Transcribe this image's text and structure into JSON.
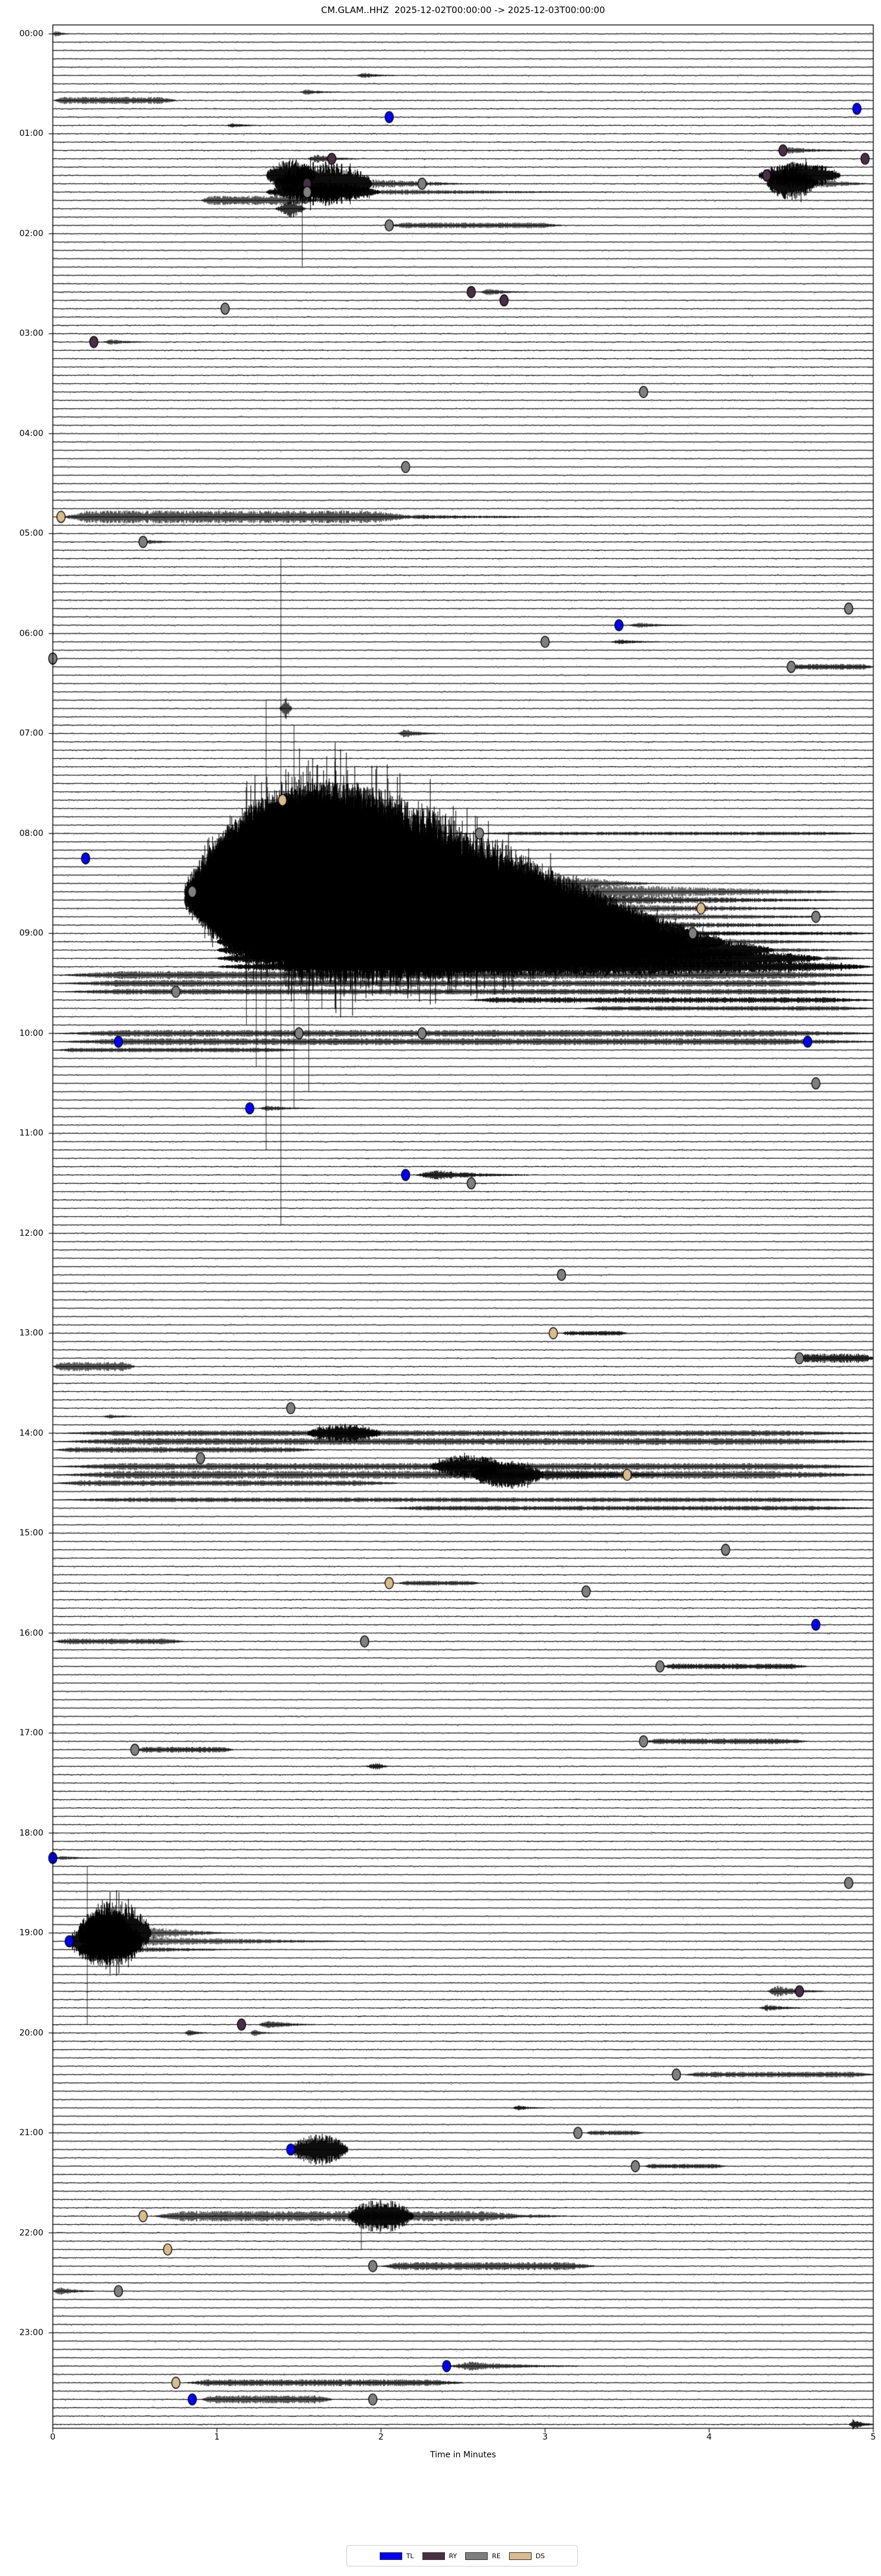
{
  "title": "CM.GLAM..HHZ  2025-12-02T00:00:00 -> 2025-12-03T00:00:00",
  "chart_data": {
    "type": "line",
    "subtype": "seismic-helicorder-dayplot",
    "station": "CM.GLAM..HHZ",
    "time_start": "2025-12-02T00:00:00",
    "time_end": "2025-12-03T00:00:00",
    "xlabel": "Time in Minutes",
    "xlim": [
      0,
      5
    ],
    "x_ticks": [
      "0",
      "1",
      "2",
      "3",
      "4",
      "5"
    ],
    "y_tick_labels": [
      "00:00",
      "01:00",
      "02:00",
      "03:00",
      "04:00",
      "05:00",
      "06:00",
      "07:00",
      "08:00",
      "09:00",
      "10:00",
      "11:00",
      "12:00",
      "13:00",
      "14:00",
      "15:00",
      "16:00",
      "17:00",
      "18:00",
      "19:00",
      "20:00",
      "21:00",
      "22:00",
      "23:00"
    ],
    "rows": 288,
    "minutes_per_row": 5,
    "grid": false,
    "trace_color": "#000000",
    "legend_position": "bottom-center",
    "legend": [
      {
        "label": "TL",
        "color": "#0000ee"
      },
      {
        "label": "RY",
        "color": "#4a2e44"
      },
      {
        "label": "RE",
        "color": "#7f7f7f"
      },
      {
        "label": "DS",
        "color": "#d9bb8d"
      }
    ],
    "markers_note": "pick markers drawn as filled ellipses on trace rows; t=row start time, m=offset minutes 0-5, c=class",
    "markers": [
      {
        "t": "00:45",
        "m": 4.9,
        "c": "TL"
      },
      {
        "t": "00:50",
        "m": 2.05,
        "c": "TL"
      },
      {
        "t": "01:10",
        "m": 4.45,
        "c": "RY"
      },
      {
        "t": "01:15",
        "m": 1.7,
        "c": "RY"
      },
      {
        "t": "01:15",
        "m": 4.95,
        "c": "RY"
      },
      {
        "t": "01:25",
        "m": 4.35,
        "c": "RY"
      },
      {
        "t": "01:30",
        "m": 1.55,
        "c": "RY"
      },
      {
        "t": "01:30",
        "m": 2.25,
        "c": "RE"
      },
      {
        "t": "01:35",
        "m": 1.55,
        "c": "RE"
      },
      {
        "t": "01:55",
        "m": 2.05,
        "c": "RE"
      },
      {
        "t": "02:35",
        "m": 2.55,
        "c": "RY"
      },
      {
        "t": "02:40",
        "m": 2.75,
        "c": "RY"
      },
      {
        "t": "02:45",
        "m": 1.05,
        "c": "RE"
      },
      {
        "t": "03:05",
        "m": 0.25,
        "c": "RY"
      },
      {
        "t": "03:35",
        "m": 3.6,
        "c": "RE"
      },
      {
        "t": "04:20",
        "m": 2.15,
        "c": "RE"
      },
      {
        "t": "04:50",
        "m": 0.05,
        "c": "DS"
      },
      {
        "t": "05:05",
        "m": 0.55,
        "c": "RE"
      },
      {
        "t": "05:45",
        "m": 4.85,
        "c": "RE"
      },
      {
        "t": "05:55",
        "m": 3.45,
        "c": "TL"
      },
      {
        "t": "06:05",
        "m": 3.0,
        "c": "RE"
      },
      {
        "t": "06:15",
        "m": 0.0,
        "c": "RE"
      },
      {
        "t": "06:20",
        "m": 4.5,
        "c": "RE"
      },
      {
        "t": "07:40",
        "m": 1.4,
        "c": "DS"
      },
      {
        "t": "08:00",
        "m": 2.6,
        "c": "RE"
      },
      {
        "t": "08:15",
        "m": 0.2,
        "c": "TL"
      },
      {
        "t": "08:35",
        "m": 0.85,
        "c": "RE"
      },
      {
        "t": "08:45",
        "m": 3.95,
        "c": "DS"
      },
      {
        "t": "08:50",
        "m": 4.65,
        "c": "RE"
      },
      {
        "t": "09:00",
        "m": 3.9,
        "c": "RE"
      },
      {
        "t": "09:35",
        "m": 0.75,
        "c": "RE"
      },
      {
        "t": "10:00",
        "m": 1.5,
        "c": "RE"
      },
      {
        "t": "10:00",
        "m": 2.25,
        "c": "RE"
      },
      {
        "t": "10:05",
        "m": 4.6,
        "c": "TL"
      },
      {
        "t": "10:05",
        "m": 0.4,
        "c": "TL"
      },
      {
        "t": "10:30",
        "m": 4.65,
        "c": "RE"
      },
      {
        "t": "10:45",
        "m": 1.2,
        "c": "TL"
      },
      {
        "t": "11:25",
        "m": 2.15,
        "c": "TL"
      },
      {
        "t": "11:30",
        "m": 2.55,
        "c": "RE"
      },
      {
        "t": "12:25",
        "m": 3.1,
        "c": "RE"
      },
      {
        "t": "13:00",
        "m": 3.05,
        "c": "DS"
      },
      {
        "t": "13:15",
        "m": 4.55,
        "c": "RE"
      },
      {
        "t": "13:45",
        "m": 1.45,
        "c": "RE"
      },
      {
        "t": "14:15",
        "m": 0.9,
        "c": "RE"
      },
      {
        "t": "14:25",
        "m": 3.5,
        "c": "DS"
      },
      {
        "t": "15:10",
        "m": 4.1,
        "c": "RE"
      },
      {
        "t": "15:30",
        "m": 2.05,
        "c": "DS"
      },
      {
        "t": "15:35",
        "m": 3.25,
        "c": "RE"
      },
      {
        "t": "15:55",
        "m": 4.65,
        "c": "TL"
      },
      {
        "t": "16:05",
        "m": 1.9,
        "c": "RE"
      },
      {
        "t": "16:20",
        "m": 3.7,
        "c": "RE"
      },
      {
        "t": "17:05",
        "m": 3.6,
        "c": "RE"
      },
      {
        "t": "17:10",
        "m": 0.5,
        "c": "RE"
      },
      {
        "t": "18:15",
        "m": 0.0,
        "c": "TL"
      },
      {
        "t": "18:30",
        "m": 4.85,
        "c": "RE"
      },
      {
        "t": "19:05",
        "m": 0.1,
        "c": "TL"
      },
      {
        "t": "19:35",
        "m": 4.55,
        "c": "RY"
      },
      {
        "t": "19:55",
        "m": 1.15,
        "c": "RY"
      },
      {
        "t": "20:25",
        "m": 3.8,
        "c": "RE"
      },
      {
        "t": "21:00",
        "m": 3.2,
        "c": "RE"
      },
      {
        "t": "21:10",
        "m": 1.45,
        "c": "TL"
      },
      {
        "t": "21:20",
        "m": 3.55,
        "c": "RE"
      },
      {
        "t": "21:50",
        "m": 0.55,
        "c": "DS"
      },
      {
        "t": "22:10",
        "m": 0.7,
        "c": "DS"
      },
      {
        "t": "22:20",
        "m": 1.95,
        "c": "RE"
      },
      {
        "t": "22:35",
        "m": 0.4,
        "c": "RE"
      },
      {
        "t": "23:20",
        "m": 2.4,
        "c": "TL"
      },
      {
        "t": "23:30",
        "m": 0.75,
        "c": "DS"
      },
      {
        "t": "23:40",
        "m": 0.85,
        "c": "TL"
      },
      {
        "t": "23:40",
        "m": 1.95,
        "c": "RE"
      }
    ],
    "events_format": [
      "row_time",
      "start_min",
      "end_min",
      "amp_px",
      "kind",
      "tail_end_min",
      "tail_amp_px"
    ],
    "events": [
      [
        "00:00",
        0.0,
        0.1,
        6,
        "burst"
      ],
      [
        "00:25",
        1.85,
        2.1,
        5,
        "burst"
      ],
      [
        "00:35",
        1.5,
        1.75,
        5,
        "burst"
      ],
      [
        "00:40",
        0.0,
        0.75,
        6,
        "tremor"
      ],
      [
        "00:55",
        1.05,
        1.3,
        4,
        "burst"
      ],
      [
        "01:10",
        4.4,
        4.9,
        6,
        "burst"
      ],
      [
        "01:15",
        1.55,
        1.85,
        8,
        "burst"
      ],
      [
        "01:20",
        4.45,
        4.75,
        10,
        "burst"
      ],
      [
        "01:25",
        1.3,
        1.6,
        28,
        "quake"
      ],
      [
        "01:25",
        4.3,
        4.8,
        22,
        "quake"
      ],
      [
        "01:30",
        1.35,
        1.95,
        38,
        "quake",
        2.6,
        8
      ],
      [
        "01:30",
        4.35,
        4.65,
        28,
        "quake",
        5,
        8
      ],
      [
        "01:35",
        1.3,
        2.0,
        16,
        "quake",
        3.4,
        5
      ],
      [
        "01:40",
        0.9,
        1.6,
        8,
        "tremor"
      ],
      [
        "01:45",
        1.35,
        1.55,
        18,
        "spike"
      ],
      [
        "01:55",
        2.05,
        3.1,
        5,
        "tremor"
      ],
      [
        "02:35",
        2.6,
        2.9,
        6,
        "burst"
      ],
      [
        "03:05",
        0.3,
        0.6,
        5,
        "burst"
      ],
      [
        "04:50",
        0.05,
        2.2,
        11,
        "tremor",
        3.3,
        4
      ],
      [
        "05:05",
        0.55,
        0.8,
        4,
        "burst"
      ],
      [
        "05:55",
        3.5,
        3.9,
        5,
        "burst"
      ],
      [
        "06:05",
        3.4,
        3.7,
        5,
        "burst"
      ],
      [
        "06:20",
        4.5,
        5,
        5,
        "tremor"
      ],
      [
        "06:45",
        1.38,
        1.46,
        20,
        "spike"
      ],
      [
        "07:00",
        2.1,
        2.35,
        8,
        "burst"
      ],
      [
        "07:40",
        1.39,
        1.5,
        12,
        "spike"
      ],
      [
        "07:45",
        1.3,
        1.55,
        15,
        "quake"
      ],
      [
        "07:50",
        1.25,
        1.8,
        25,
        "quake"
      ],
      [
        "07:55",
        1.2,
        1.9,
        45,
        "quake"
      ],
      [
        "08:00",
        1.15,
        2.0,
        70,
        "quake",
        2.7,
        4
      ],
      [
        "08:00",
        2.6,
        5,
        3,
        "tremor"
      ],
      [
        "08:05",
        1.1,
        2.1,
        90,
        "quake"
      ],
      [
        "08:10",
        1.05,
        2.2,
        110,
        "quake"
      ],
      [
        "08:15",
        1.0,
        2.3,
        130,
        "quake"
      ],
      [
        "08:20",
        0.95,
        2.4,
        150,
        "quake"
      ],
      [
        "08:25",
        0.9,
        2.5,
        163,
        "quake"
      ],
      [
        "08:30",
        0.85,
        2.7,
        168,
        "quake",
        3.7,
        22
      ],
      [
        "08:35",
        0.8,
        2.9,
        162,
        "quake",
        5,
        16
      ],
      [
        "08:40",
        0.8,
        3.1,
        148,
        "quake",
        5,
        10
      ],
      [
        "08:45",
        0.85,
        3.3,
        128,
        "quake",
        5,
        8
      ],
      [
        "08:50",
        0.9,
        3.5,
        108,
        "quake",
        5,
        7
      ],
      [
        "08:55",
        0.95,
        3.7,
        88,
        "quake",
        5,
        6
      ],
      [
        "09:00",
        1.0,
        3.9,
        68,
        "quake",
        5,
        5
      ],
      [
        "09:05",
        1.0,
        4.1,
        50,
        "quake",
        5,
        5
      ],
      [
        "09:10",
        1.0,
        4.4,
        35,
        "quake",
        5,
        4
      ],
      [
        "09:15",
        1.0,
        4.7,
        24,
        "quake",
        5,
        4
      ],
      [
        "09:20",
        1.0,
        5,
        15,
        "quake"
      ],
      [
        "09:25",
        0,
        5,
        7,
        "tremor"
      ],
      [
        "09:30",
        0,
        5,
        6,
        "tremor"
      ],
      [
        "09:35",
        0,
        5,
        5,
        "tremor"
      ],
      [
        "09:40",
        2.5,
        5,
        5,
        "tremor"
      ],
      [
        "09:45",
        3.2,
        5,
        4,
        "tremor"
      ],
      [
        "10:00",
        0,
        5,
        6,
        "tremor"
      ],
      [
        "10:05",
        0,
        5,
        6,
        "tremor"
      ],
      [
        "10:10",
        0,
        1.5,
        4,
        "tremor"
      ],
      [
        "10:45",
        1.25,
        1.6,
        5,
        "burst"
      ],
      [
        "11:25",
        2.2,
        2.9,
        9,
        "burst"
      ],
      [
        "13:00",
        3.1,
        3.5,
        4,
        "tremor"
      ],
      [
        "13:15",
        4.55,
        5,
        8,
        "tremor"
      ],
      [
        "13:20",
        0,
        0.5,
        8,
        "tremor"
      ],
      [
        "13:50",
        0.3,
        0.55,
        4,
        "burst"
      ],
      [
        "14:00",
        0,
        5,
        5,
        "tremor"
      ],
      [
        "14:00",
        1.55,
        2.0,
        16,
        "quake"
      ],
      [
        "14:05",
        0,
        5,
        6,
        "tremor"
      ],
      [
        "14:10",
        0,
        1.6,
        5,
        "tremor"
      ],
      [
        "14:20",
        0,
        5,
        6,
        "tremor"
      ],
      [
        "14:20",
        2.3,
        2.75,
        20,
        "quake"
      ],
      [
        "14:25",
        0,
        5,
        7,
        "tremor"
      ],
      [
        "14:25",
        2.55,
        3.0,
        24,
        "quake",
        3.9,
        10
      ],
      [
        "14:30",
        0,
        2.1,
        5,
        "tremor"
      ],
      [
        "14:40",
        0,
        5,
        4,
        "tremor"
      ],
      [
        "14:45",
        2,
        5,
        4,
        "tremor"
      ],
      [
        "15:30",
        2.1,
        2.6,
        4,
        "tremor"
      ],
      [
        "16:05",
        0,
        0.8,
        5,
        "tremor"
      ],
      [
        "16:20",
        3.7,
        4.6,
        5,
        "tremor"
      ],
      [
        "17:05",
        3.6,
        4.6,
        5,
        "tremor"
      ],
      [
        "17:10",
        0.5,
        1.1,
        5,
        "tremor"
      ],
      [
        "17:20",
        1.9,
        2.05,
        7,
        "spike"
      ],
      [
        "18:15",
        0.0,
        0.3,
        4,
        "burst"
      ],
      [
        "18:55",
        0.2,
        0.45,
        30,
        "quake"
      ],
      [
        "19:00",
        0.15,
        0.6,
        55,
        "quake",
        1.1,
        10
      ],
      [
        "19:05",
        0.1,
        0.55,
        45,
        "quake",
        1.9,
        8
      ],
      [
        "19:10",
        0.15,
        0.5,
        18,
        "quake",
        1.2,
        5
      ],
      [
        "19:15",
        0.2,
        0.4,
        8,
        "burst"
      ],
      [
        "19:35",
        4.35,
        4.7,
        10,
        "burst"
      ],
      [
        "19:45",
        4.3,
        4.6,
        6,
        "burst"
      ],
      [
        "19:55",
        1.25,
        1.6,
        8,
        "burst"
      ],
      [
        "20:00",
        0.8,
        0.95,
        6,
        "burst"
      ],
      [
        "20:00",
        1.2,
        1.35,
        6,
        "burst"
      ],
      [
        "20:25",
        3.85,
        5,
        5,
        "tremor"
      ],
      [
        "20:45",
        2.8,
        3.0,
        5,
        "burst"
      ],
      [
        "21:00",
        3.25,
        3.6,
        4,
        "tremor"
      ],
      [
        "21:10",
        1.45,
        1.8,
        26,
        "quake"
      ],
      [
        "21:20",
        3.6,
        4.1,
        4,
        "tremor"
      ],
      [
        "21:50",
        0.6,
        2.9,
        9,
        "tremor",
        3.2,
        4
      ],
      [
        "21:50",
        1.8,
        2.2,
        28,
        "quake"
      ],
      [
        "22:20",
        2.0,
        3.3,
        7,
        "tremor"
      ],
      [
        "22:35",
        0,
        0.25,
        8,
        "burst"
      ],
      [
        "23:20",
        2.4,
        3.2,
        8,
        "burst"
      ],
      [
        "23:30",
        0.8,
        2.5,
        6,
        "tremor"
      ],
      [
        "23:40",
        0.9,
        1.7,
        7,
        "tremor"
      ],
      [
        "23:55",
        4.85,
        5,
        10,
        "burst"
      ],
      [
        "09:00",
        3.9,
        5,
        3,
        "tremor"
      ]
    ],
    "overflow_lines_note": "clipped-amplitude vertical lines crossing rows; minute offset + time span",
    "overflow_lines": [
      {
        "m": 1.39,
        "from": "05:15",
        "to": "11:55"
      },
      {
        "m": 1.3,
        "from": "06:40",
        "to": "11:10"
      },
      {
        "m": 1.47,
        "from": "06:55",
        "to": "10:45"
      },
      {
        "m": 1.24,
        "from": "07:40",
        "to": "10:20"
      },
      {
        "m": 1.56,
        "from": "07:30",
        "to": "10:35"
      },
      {
        "m": 1.64,
        "from": "08:00",
        "to": "09:45"
      },
      {
        "m": 1.18,
        "from": "08:05",
        "to": "09:55"
      },
      {
        "m": 1.52,
        "from": "01:20",
        "to": "02:20"
      },
      {
        "m": 0.21,
        "from": "18:20",
        "to": "19:55"
      },
      {
        "m": 1.88,
        "from": "21:45",
        "to": "22:10"
      }
    ]
  }
}
